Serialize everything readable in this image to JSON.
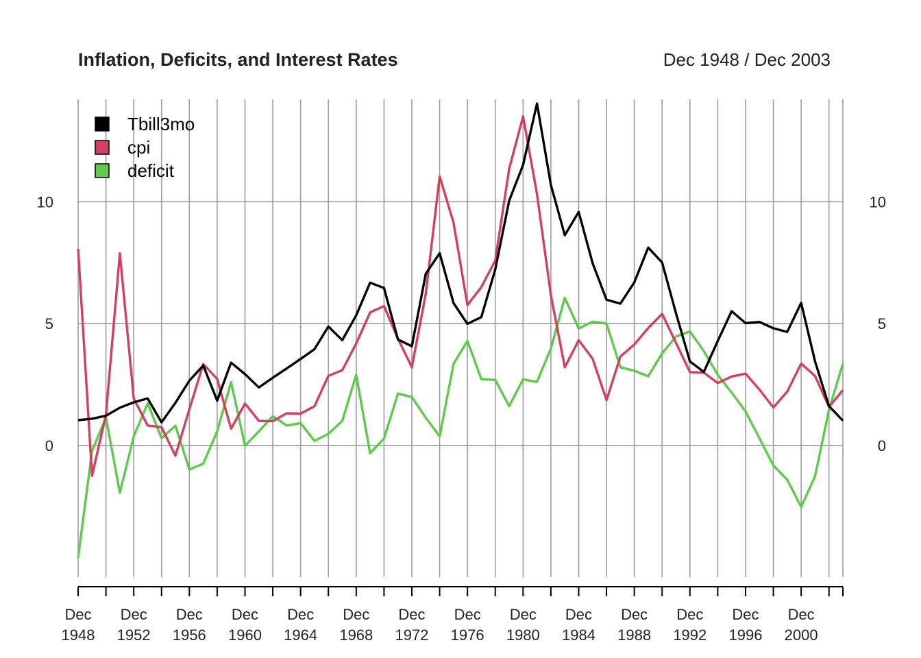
{
  "chart_data": {
    "type": "line",
    "title": "Inflation, Deficits, and Interest Rates",
    "date_range": "Dec 1948 / Dec 2003",
    "x": [
      1948,
      1949,
      1950,
      1951,
      1952,
      1953,
      1954,
      1955,
      1956,
      1957,
      1958,
      1959,
      1960,
      1961,
      1962,
      1963,
      1964,
      1965,
      1966,
      1967,
      1968,
      1969,
      1970,
      1971,
      1972,
      1973,
      1974,
      1975,
      1976,
      1977,
      1978,
      1979,
      1980,
      1981,
      1982,
      1983,
      1984,
      1985,
      1986,
      1987,
      1988,
      1989,
      1990,
      1991,
      1992,
      1993,
      1994,
      1995,
      1996,
      1997,
      1998,
      1999,
      2000,
      2001,
      2002,
      2003
    ],
    "x_tick_labels": [
      {
        "month": "Dec",
        "year": "1948"
      },
      {
        "month": "Dec",
        "year": "1952"
      },
      {
        "month": "Dec",
        "year": "1956"
      },
      {
        "month": "Dec",
        "year": "1960"
      },
      {
        "month": "Dec",
        "year": "1964"
      },
      {
        "month": "Dec",
        "year": "1968"
      },
      {
        "month": "Dec",
        "year": "1972"
      },
      {
        "month": "Dec",
        "year": "1976"
      },
      {
        "month": "Dec",
        "year": "1980"
      },
      {
        "month": "Dec",
        "year": "1984"
      },
      {
        "month": "Dec",
        "year": "1988"
      },
      {
        "month": "Dec",
        "year": "1992"
      },
      {
        "month": "Dec",
        "year": "1996"
      },
      {
        "month": "Dec",
        "year": "2000"
      }
    ],
    "x_tick_years": [
      1948,
      1952,
      1956,
      1960,
      1964,
      1968,
      1972,
      1976,
      1980,
      1984,
      1988,
      1992,
      1996,
      2000
    ],
    "y_ticks": [
      0,
      5,
      10
    ],
    "y_tick_labels": [
      "0",
      "5",
      "10"
    ],
    "ylim": [
      -5.4,
      14.2
    ],
    "grid": true,
    "legend_position": "top-left",
    "series": [
      {
        "name": "Tbill3mo",
        "color": "#000000",
        "values": [
          1.04,
          1.1,
          1.22,
          1.55,
          1.77,
          1.93,
          0.95,
          1.75,
          2.66,
          3.28,
          1.84,
          3.4,
          2.93,
          2.38,
          2.78,
          3.16,
          3.55,
          3.95,
          4.88,
          4.32,
          5.34,
          6.68,
          6.46,
          4.35,
          4.07,
          7.04,
          7.89,
          5.84,
          4.99,
          5.27,
          7.22,
          10.04,
          11.51,
          14.03,
          10.69,
          8.63,
          9.58,
          7.48,
          5.98,
          5.82,
          6.69,
          8.12,
          7.51,
          5.42,
          3.45,
          3.02,
          4.29,
          5.51,
          5.02,
          5.07,
          4.81,
          4.66,
          5.85,
          3.45,
          1.62,
          1.02
        ]
      },
      {
        "name": "cpi",
        "color": "#d33f5e",
        "values": [
          8.07,
          -1.24,
          1.26,
          7.88,
          1.92,
          0.82,
          0.75,
          -0.42,
          1.49,
          3.34,
          2.73,
          0.69,
          1.72,
          1.01,
          1.0,
          1.32,
          1.31,
          1.61,
          2.86,
          3.09,
          4.19,
          5.46,
          5.72,
          4.38,
          3.21,
          6.22,
          11.04,
          9.13,
          5.76,
          6.5,
          7.59,
          11.35,
          13.5,
          10.32,
          6.16,
          3.21,
          4.32,
          3.56,
          1.86,
          3.65,
          4.14,
          4.82,
          5.4,
          4.21,
          3.01,
          2.99,
          2.56,
          2.83,
          2.95,
          2.29,
          1.56,
          2.21,
          3.36,
          2.85,
          1.58,
          2.27
        ]
      },
      {
        "name": "deficit",
        "color": "#5ec94a",
        "values": [
          -4.6,
          -0.23,
          1.15,
          -1.94,
          0.38,
          1.73,
          0.3,
          0.81,
          -0.98,
          -0.75,
          0.58,
          2.6,
          -0.01,
          0.58,
          1.2,
          0.82,
          0.92,
          0.19,
          0.48,
          1.01,
          2.9,
          -0.32,
          0.29,
          2.13,
          1.99,
          1.14,
          0.38,
          3.35,
          4.29,
          2.72,
          2.69,
          1.62,
          2.71,
          2.61,
          3.98,
          6.06,
          4.8,
          5.08,
          5.0,
          3.21,
          3.07,
          2.84,
          3.78,
          4.47,
          4.68,
          3.87,
          2.9,
          2.17,
          1.4,
          0.29,
          -0.82,
          -1.4,
          -2.52,
          -1.26,
          1.46,
          3.36
        ]
      }
    ]
  }
}
